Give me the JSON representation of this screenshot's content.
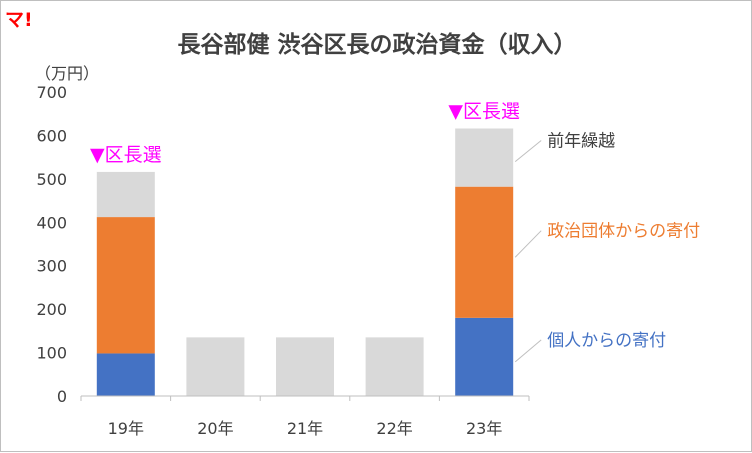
{
  "logo_text": "マ!",
  "chart_data": {
    "type": "bar",
    "stacked": true,
    "title": "長谷部健 渋谷区長の政治資金（収入）",
    "ylabel": "（万円）",
    "ylim": [
      0,
      700
    ],
    "yticks": [
      0,
      100,
      200,
      300,
      400,
      500,
      600,
      700
    ],
    "grid": false,
    "categories": [
      "19年",
      "20年",
      "21年",
      "22年",
      "23年"
    ],
    "series": [
      {
        "name": "個人からの寄付",
        "color": "#4472c4",
        "values": [
          98,
          0,
          0,
          0,
          180
        ]
      },
      {
        "name": "政治団体からの寄付",
        "color": "#ed7d31",
        "values": [
          314,
          0,
          0,
          0,
          302
        ]
      },
      {
        "name": "前年繰越",
        "color": "#d9d9d9",
        "values": [
          104,
          135,
          135,
          135,
          134
        ]
      }
    ],
    "annotations": [
      {
        "text": "▼区長選",
        "category": "19年",
        "color": "#ff00ff"
      },
      {
        "text": "▼区長選",
        "category": "23年",
        "color": "#ff00ff"
      }
    ]
  }
}
